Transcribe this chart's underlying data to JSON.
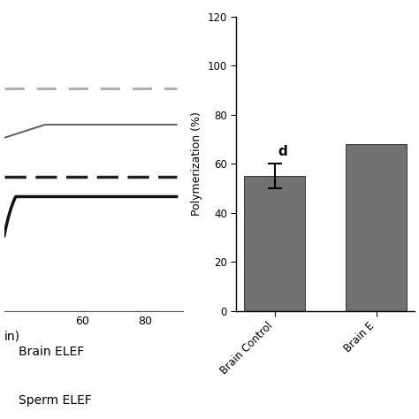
{
  "bar_categories": [
    "Brain Control",
    "Brain E"
  ],
  "bar_values": [
    55.0,
    68.0
  ],
  "bar_errors": [
    5.0,
    0
  ],
  "bar_color": "#717171",
  "bar_annotations": [
    "d",
    ""
  ],
  "ylabel": "Polymerization (%)",
  "ylim": [
    0,
    120
  ],
  "yticks": [
    0,
    20,
    40,
    60,
    80,
    100,
    120
  ],
  "legend_labels": [
    "Brain ELEF",
    "Sperm ELEF"
  ],
  "xlabel_line": "in)",
  "background_color": "#ffffff",
  "line1_color": "#aaaaaa",
  "line2_color": "#666666",
  "line3_color": "#222222",
  "line4_color": "#111111"
}
